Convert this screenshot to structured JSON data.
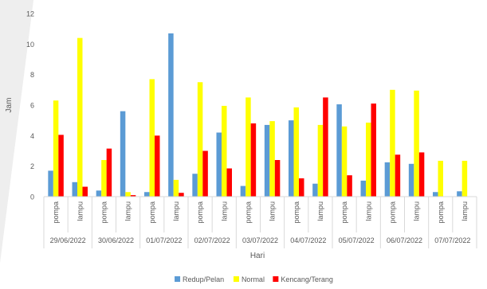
{
  "chart_data": {
    "type": "bar",
    "xlabel": "Hari",
    "ylabel": "Jam",
    "ylim": [
      0,
      12
    ],
    "yticks": [
      0,
      2,
      4,
      6,
      8,
      10,
      12
    ],
    "grid": false,
    "legend_position": "bottom",
    "groups": [
      "29/06/2022",
      "30/06/2022",
      "01/07/2022",
      "02/07/2022",
      "03/07/2022",
      "04/07/2022",
      "05/07/2022",
      "06/07/2022",
      "07/07/2022"
    ],
    "subcategories": [
      "pompa",
      "lampu"
    ],
    "categories": [
      "pompa",
      "lampu",
      "pompa",
      "lampu",
      "pompa",
      "lampu",
      "pompa",
      "lampu",
      "pompa",
      "lampu",
      "pompa",
      "lampu",
      "pompa",
      "lampu",
      "pompa",
      "lampu",
      "pompa",
      "lampu"
    ],
    "series": [
      {
        "name": "Redup/Pelan",
        "color": "#5B9BD5",
        "values": [
          1.7,
          0.95,
          0.4,
          5.6,
          0.3,
          10.7,
          1.5,
          4.2,
          0.7,
          4.7,
          5.0,
          0.85,
          6.05,
          1.05,
          2.25,
          2.15,
          0.3,
          0.35
        ]
      },
      {
        "name": "Normal",
        "color": "#FFFF00",
        "values": [
          6.3,
          10.4,
          2.4,
          0.3,
          7.7,
          1.1,
          7.5,
          5.95,
          6.5,
          4.95,
          5.85,
          4.7,
          4.6,
          4.85,
          7.0,
          6.95,
          2.35,
          2.35
        ]
      },
      {
        "name": "Kencang/Terang",
        "color": "#FF0000",
        "values": [
          4.05,
          0.65,
          3.15,
          0.1,
          4.0,
          0.25,
          3.0,
          1.85,
          4.8,
          2.4,
          1.2,
          6.5,
          1.4,
          6.1,
          2.75,
          2.9,
          0,
          0
        ]
      }
    ]
  }
}
